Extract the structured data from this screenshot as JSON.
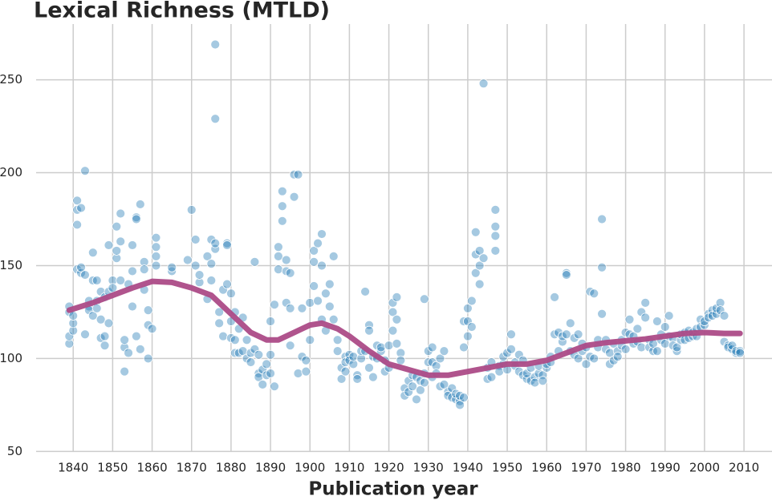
{
  "chart_data": {
    "type": "scatter",
    "title": "Lexical Richness (MTLD)",
    "x_label": "Publication year",
    "color": "#1f77b4",
    "grid": true,
    "xlim": [
      1830.6,
      2017.1
    ],
    "ylim": [
      48,
      280
    ],
    "xticks": [
      1840,
      1850,
      1860,
      1870,
      1880,
      1890,
      1900,
      1910,
      1920,
      1930,
      1940,
      1950,
      1960,
      1970,
      1980,
      1990,
      2000,
      2010
    ],
    "yticks": [
      50,
      100,
      150,
      200,
      250
    ],
    "x": [
      1839,
      1839,
      1839,
      1839,
      1840,
      1840,
      1840,
      1841,
      1841,
      1841,
      1841,
      1842,
      1842,
      1842,
      1843,
      1843,
      1843,
      1844,
      1844,
      1844,
      1845,
      1845,
      1845,
      1846,
      1846,
      1846,
      1847,
      1847,
      1847,
      1848,
      1848,
      1848,
      1849,
      1849,
      1849,
      1850,
      1850,
      1851,
      1851,
      1851,
      1852,
      1852,
      1852,
      1853,
      1853,
      1853,
      1854,
      1854,
      1855,
      1855,
      1855,
      1856,
      1856,
      1856,
      1857,
      1857,
      1858,
      1858,
      1858,
      1859,
      1859,
      1859,
      1860,
      1861,
      1861,
      1861,
      1861,
      1865,
      1865,
      1869,
      1870,
      1871,
      1871,
      1872,
      1872,
      1874,
      1874,
      1875,
      1875,
      1875,
      1876,
      1876,
      1876,
      1876,
      1877,
      1877,
      1878,
      1878,
      1879,
      1879,
      1879,
      1880,
      1880,
      1880,
      1881,
      1881,
      1881,
      1882,
      1882,
      1883,
      1883,
      1884,
      1884,
      1885,
      1885,
      1886,
      1886,
      1887,
      1887,
      1887,
      1888,
      1888,
      1889,
      1889,
      1890,
      1890,
      1890,
      1891,
      1891,
      1892,
      1892,
      1892,
      1893,
      1893,
      1893,
      1894,
      1894,
      1894,
      1895,
      1895,
      1895,
      1896,
      1896,
      1897,
      1897,
      1898,
      1898,
      1899,
      1899,
      1900,
      1900,
      1901,
      1901,
      1901,
      1902,
      1902,
      1903,
      1903,
      1903,
      1904,
      1904,
      1905,
      1905,
      1906,
      1906,
      1907,
      1907,
      1908,
      1908,
      1909,
      1909,
      1909,
      1910,
      1910,
      1911,
      1911,
      1912,
      1912,
      1913,
      1913,
      1914,
      1914,
      1915,
      1915,
      1915,
      1916,
      1916,
      1917,
      1917,
      1918,
      1918,
      1919,
      1919,
      1920,
      1920,
      1921,
      1921,
      1921,
      1922,
      1922,
      1922,
      1923,
      1923,
      1924,
      1924,
      1925,
      1925,
      1926,
      1926,
      1927,
      1927,
      1928,
      1928,
      1929,
      1929,
      1929,
      1930,
      1930,
      1931,
      1931,
      1931,
      1932,
      1932,
      1933,
      1933,
      1934,
      1934,
      1935,
      1935,
      1936,
      1936,
      1937,
      1937,
      1938,
      1938,
      1938,
      1939,
      1939,
      1939,
      1940,
      1940,
      1940,
      1941,
      1941,
      1942,
      1942,
      1942,
      1943,
      1943,
      1943,
      1944,
      1944,
      1945,
      1945,
      1946,
      1946,
      1947,
      1947,
      1947,
      1947,
      1948,
      1948,
      1949,
      1949,
      1950,
      1950,
      1951,
      1951,
      1952,
      1952,
      1953,
      1953,
      1954,
      1954,
      1955,
      1955,
      1956,
      1956,
      1957,
      1957,
      1958,
      1958,
      1959,
      1959,
      1960,
      1960,
      1961,
      1961,
      1962,
      1962,
      1963,
      1963,
      1964,
      1964,
      1965,
      1965,
      1965,
      1966,
      1966,
      1967,
      1967,
      1968,
      1968,
      1969,
      1969,
      1970,
      1970,
      1971,
      1971,
      1972,
      1972,
      1973,
      1973,
      1974,
      1974,
      1974,
      1975,
      1975,
      1976,
      1976,
      1977,
      1977,
      1978,
      1978,
      1979,
      1979,
      1980,
      1980,
      1981,
      1981,
      1982,
      1982,
      1983,
      1983,
      1984,
      1984,
      1985,
      1985,
      1986,
      1986,
      1987,
      1987,
      1988,
      1988,
      1989,
      1989,
      1990,
      1990,
      1991,
      1991,
      1992,
      1992,
      1993,
      1993,
      1994,
      1994,
      1995,
      1995,
      1996,
      1996,
      1997,
      1997,
      1998,
      1998,
      1999,
      1999,
      2000,
      2000,
      2001,
      2001,
      2002,
      2002,
      2003,
      2003,
      2004,
      2004,
      2005,
      2005,
      2006,
      2006,
      2007,
      2007,
      2008,
      2008,
      2009,
      2009
    ],
    "values": [
      108,
      112,
      125,
      128,
      115,
      119,
      123,
      180,
      185,
      172,
      148,
      181,
      146,
      149,
      145,
      201,
      113,
      128,
      131,
      126,
      142,
      157,
      123,
      142,
      131,
      127,
      111,
      136,
      121,
      112,
      107,
      133,
      161,
      119,
      136,
      142,
      138,
      154,
      158,
      171,
      163,
      178,
      142,
      106,
      93,
      110,
      103,
      140,
      128,
      147,
      161,
      176,
      175,
      112,
      183,
      105,
      152,
      137,
      148,
      100,
      126,
      118,
      116,
      150,
      155,
      165,
      160,
      147,
      149,
      153,
      180,
      164,
      150,
      141,
      145,
      132,
      155,
      142,
      151,
      164,
      269,
      229,
      159,
      162,
      125,
      119,
      112,
      137,
      162,
      140,
      161,
      135,
      120,
      111,
      103,
      110,
      125,
      103,
      116,
      104,
      122,
      110,
      100,
      98,
      103,
      152,
      105,
      92,
      90,
      102,
      86,
      94,
      97,
      91,
      92,
      102,
      120,
      85,
      129,
      148,
      155,
      160,
      174,
      182,
      190,
      153,
      147,
      130,
      146,
      127,
      107,
      199,
      187,
      92,
      199,
      101,
      127,
      99,
      93,
      110,
      130,
      152,
      158,
      139,
      162,
      131,
      167,
      150,
      121,
      135,
      115,
      140,
      128,
      155,
      121,
      110,
      104,
      95,
      89,
      101,
      98,
      93,
      102,
      99,
      97,
      101,
      91,
      89,
      100,
      104,
      136,
      104,
      118,
      115,
      95,
      90,
      101,
      107,
      100,
      104,
      106,
      99,
      93,
      107,
      95,
      130,
      125,
      115,
      133,
      108,
      121,
      103,
      99,
      84,
      80,
      82,
      88,
      85,
      91,
      78,
      90,
      83,
      88,
      92,
      132,
      87,
      104,
      98,
      106,
      98,
      90,
      96,
      92,
      85,
      100,
      86,
      104,
      82,
      80,
      84,
      79,
      78,
      81,
      77,
      80,
      75,
      79,
      120,
      106,
      127,
      120,
      112,
      131,
      117,
      146,
      156,
      168,
      140,
      158,
      150,
      248,
      154,
      89,
      95,
      90,
      98,
      180,
      171,
      166,
      158,
      96,
      93,
      97,
      101,
      103,
      94,
      105,
      113,
      98,
      96,
      102,
      93,
      99,
      91,
      89,
      92,
      88,
      95,
      90,
      87,
      92,
      96,
      91,
      88,
      95,
      97,
      101,
      98,
      133,
      113,
      104,
      114,
      109,
      112,
      146,
      145,
      113,
      119,
      104,
      111,
      102,
      100,
      113,
      108,
      104,
      97,
      106,
      136,
      101,
      135,
      100,
      106,
      110,
      175,
      149,
      124,
      110,
      105,
      103,
      97,
      99,
      108,
      104,
      101,
      110,
      107,
      114,
      105,
      121,
      113,
      112,
      108,
      116,
      109,
      125,
      106,
      130,
      122,
      110,
      106,
      104,
      108,
      120,
      104,
      113,
      110,
      117,
      108,
      123,
      112,
      111,
      107,
      104,
      106,
      110,
      113,
      114,
      110,
      115,
      111,
      112,
      114,
      112,
      116,
      121,
      117,
      118,
      120,
      124,
      122,
      126,
      123,
      124,
      127,
      130,
      126,
      109,
      123,
      107,
      106,
      105,
      107,
      103,
      104,
      104,
      103
    ],
    "trend": {
      "color": "#ac4b87",
      "x": [
        1839,
        1845,
        1850,
        1855,
        1860,
        1865,
        1870,
        1875,
        1880,
        1885,
        1889,
        1892,
        1896,
        1900,
        1903,
        1907,
        1910,
        1915,
        1920,
        1925,
        1930,
        1935,
        1940,
        1945,
        1950,
        1955,
        1960,
        1965,
        1970,
        1975,
        1980,
        1985,
        1990,
        1995,
        2000,
        2005,
        2009
      ],
      "values": [
        126,
        130,
        134,
        138,
        141.5,
        141,
        138,
        134,
        124,
        114,
        110,
        110,
        114,
        118,
        119,
        116,
        112,
        104,
        97,
        94,
        91,
        91,
        93,
        95,
        97,
        97,
        99,
        103,
        107,
        108.5,
        109.5,
        110.5,
        112,
        113.5,
        114,
        113.5,
        113.5
      ]
    }
  }
}
